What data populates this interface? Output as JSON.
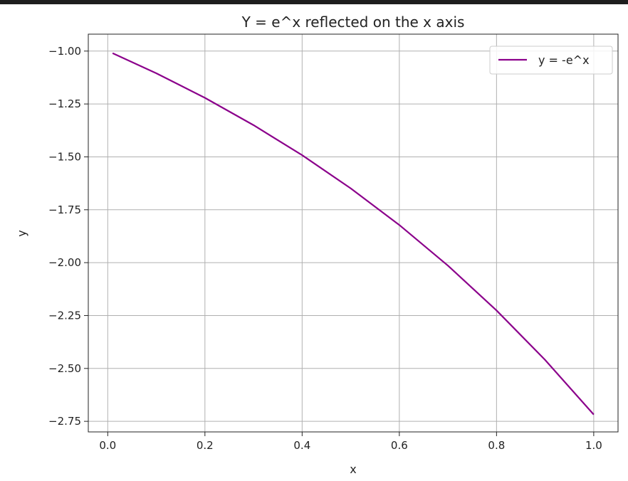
{
  "chart_data": {
    "type": "line",
    "title": "Y = e^x reflected on the x axis",
    "xlabel": "x",
    "ylabel": "y",
    "xlim": [
      -0.04,
      1.05
    ],
    "ylim": [
      -2.8,
      -0.92
    ],
    "xticks": [
      0.0,
      0.2,
      0.4,
      0.6,
      0.8,
      1.0
    ],
    "xtick_labels": [
      "0.0",
      "0.2",
      "0.4",
      "0.6",
      "0.8",
      "1.0"
    ],
    "yticks": [
      -1.0,
      -1.25,
      -1.5,
      -1.75,
      -2.0,
      -2.25,
      -2.5,
      -2.75
    ],
    "ytick_labels": [
      "−1.00",
      "−1.25",
      "−1.50",
      "−1.75",
      "−2.00",
      "−2.25",
      "−2.50",
      "−2.75"
    ],
    "grid": true,
    "legend_position": "top-right",
    "series": [
      {
        "name": "y = -e^x",
        "color": "#8b008b",
        "x": [
          0.01,
          0.1,
          0.2,
          0.3,
          0.4,
          0.5,
          0.6,
          0.7,
          0.8,
          0.9,
          1.0
        ],
        "y": [
          -1.01,
          -1.105,
          -1.221,
          -1.35,
          -1.492,
          -1.649,
          -1.822,
          -2.014,
          -2.226,
          -2.46,
          -2.718
        ]
      }
    ]
  }
}
